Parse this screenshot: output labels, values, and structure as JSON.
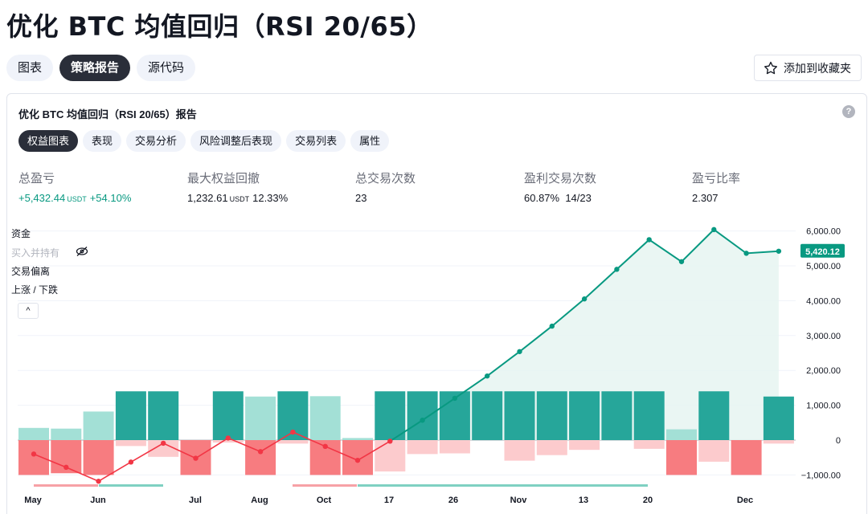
{
  "page": {
    "title": "优化 BTC 均值回归（RSI 20/65）",
    "tabs": [
      {
        "label": "图表",
        "active": false
      },
      {
        "label": "策略报告",
        "active": true
      },
      {
        "label": "源代码",
        "active": false
      }
    ],
    "favorite_label": "添加到收藏夹"
  },
  "report": {
    "title": "优化 BTC 均值回归（RSI 20/65）报告",
    "help": "?",
    "tabs": [
      {
        "label": "权益图表",
        "active": true
      },
      {
        "label": "表现",
        "active": false
      },
      {
        "label": "交易分析",
        "active": false
      },
      {
        "label": "风险调整后表现",
        "active": false
      },
      {
        "label": "交易列表",
        "active": false
      },
      {
        "label": "属性",
        "active": false
      }
    ],
    "stats": [
      {
        "label": "总盈亏",
        "value": "+5,432.44",
        "unit": "USDT",
        "extra": "+54.10%",
        "positive": true
      },
      {
        "label": "最大权益回撤",
        "value": "1,232.61",
        "unit": "USDT",
        "extra": "12.33%",
        "positive": false
      },
      {
        "label": "总交易次数",
        "value": "23",
        "unit": "",
        "extra": "",
        "positive": false
      },
      {
        "label": "盈利交易次数",
        "value": "60.87%",
        "unit": "",
        "extra": "14/23",
        "positive": false
      },
      {
        "label": "盈亏比率",
        "value": "2.307",
        "unit": "",
        "extra": "",
        "positive": false
      }
    ],
    "legend": {
      "equity": "资金",
      "buy_hold": "买入并持有",
      "excursion": "交易偏离",
      "run_up_drawdown": "上涨 / 下跌",
      "collapse": "^"
    }
  },
  "chart_data": {
    "type": "line",
    "y_ticks": [
      "6,000.00",
      "5,000.00",
      "4,000.00",
      "3,000.00",
      "2,000.00",
      "1,000.00",
      "0",
      "−1,000.00"
    ],
    "y_tick_values": [
      6000,
      5000,
      4000,
      3000,
      2000,
      1000,
      0,
      -1000
    ],
    "ylim": [
      -1200,
      6200
    ],
    "x_ticks": [
      "May",
      "Jun",
      "Jul",
      "Aug",
      "Oct",
      "17",
      "26",
      "Nov",
      "13",
      "20",
      "Dec"
    ],
    "last_value_label": "5,420.12",
    "colors": {
      "equity": "#089981",
      "equity_fill": "#e6f4f1",
      "loss_line": "#f23645",
      "win_bar": "#26a69a",
      "win_bar_light": "#a3e0d6",
      "loss_bar": "#f77c80",
      "loss_bar_light": "#fccbcd"
    },
    "equity_series": [
      {
        "trade": 1,
        "value": -400
      },
      {
        "trade": 2,
        "value": -780
      },
      {
        "trade": 3,
        "value": -1180
      },
      {
        "trade": 4,
        "value": -630
      },
      {
        "trade": 5,
        "value": -90
      },
      {
        "trade": 6,
        "value": -520
      },
      {
        "trade": 7,
        "value": 60
      },
      {
        "trade": 8,
        "value": -330
      },
      {
        "trade": 9,
        "value": 230
      },
      {
        "trade": 10,
        "value": -180
      },
      {
        "trade": 11,
        "value": -580
      },
      {
        "trade": 12,
        "value": -30
      },
      {
        "trade": 13,
        "value": 570
      },
      {
        "trade": 14,
        "value": 1200
      },
      {
        "trade": 15,
        "value": 1840
      },
      {
        "trade": 16,
        "value": 2540
      },
      {
        "trade": 17,
        "value": 3270
      },
      {
        "trade": 18,
        "value": 4050
      },
      {
        "trade": 19,
        "value": 4900
      },
      {
        "trade": 20,
        "value": 5750
      },
      {
        "trade": 21,
        "value": 5120
      },
      {
        "trade": 22,
        "value": 6040
      },
      {
        "trade": 23,
        "value": 5360
      },
      {
        "trade": 24,
        "value": 5420
      }
    ],
    "trade_bars": [
      {
        "trade": 1,
        "up": 350,
        "down": -1000,
        "win": false
      },
      {
        "trade": 2,
        "up": 330,
        "down": -950,
        "win": false
      },
      {
        "trade": 3,
        "up": 820,
        "down": -1000,
        "win": false
      },
      {
        "trade": 4,
        "up": 1400,
        "down": -170,
        "win": true
      },
      {
        "trade": 5,
        "up": 1400,
        "down": -480,
        "win": true
      },
      {
        "trade": 6,
        "up": 0,
        "down": -1000,
        "win": false
      },
      {
        "trade": 7,
        "up": 1400,
        "down": -70,
        "win": true
      },
      {
        "trade": 8,
        "up": 1250,
        "down": -1000,
        "win": false
      },
      {
        "trade": 9,
        "up": 1400,
        "down": -100,
        "win": true
      },
      {
        "trade": 10,
        "up": 1260,
        "down": -1000,
        "win": false
      },
      {
        "trade": 11,
        "up": 60,
        "down": -1000,
        "win": false
      },
      {
        "trade": 12,
        "up": 1400,
        "down": -900,
        "win": true
      },
      {
        "trade": 13,
        "up": 1400,
        "down": -400,
        "win": true
      },
      {
        "trade": 14,
        "up": 1400,
        "down": -380,
        "win": true
      },
      {
        "trade": 15,
        "up": 1400,
        "down": 0,
        "win": true
      },
      {
        "trade": 16,
        "up": 1400,
        "down": -590,
        "win": true
      },
      {
        "trade": 17,
        "up": 1400,
        "down": -430,
        "win": true
      },
      {
        "trade": 18,
        "up": 1400,
        "down": -280,
        "win": true
      },
      {
        "trade": 19,
        "up": 1400,
        "down": 0,
        "win": true
      },
      {
        "trade": 20,
        "up": 1400,
        "down": -250,
        "win": true
      },
      {
        "trade": 21,
        "up": 310,
        "down": -1000,
        "win": false
      },
      {
        "trade": 22,
        "up": 1400,
        "down": -620,
        "win": true
      },
      {
        "trade": 23,
        "up": 0,
        "down": -1000,
        "win": false
      },
      {
        "trade": 24,
        "up": 1250,
        "down": -100,
        "win": true
      }
    ]
  }
}
